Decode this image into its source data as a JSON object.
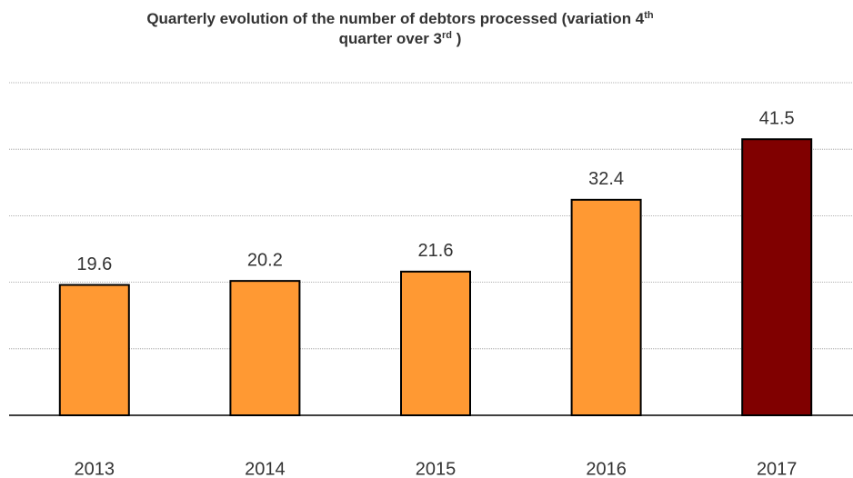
{
  "chart_data": {
    "type": "bar",
    "title": [
      "Quarterly evolution of the number of debtors processed  (variation 4",
      "th",
      " quarter over 3",
      "rd",
      " )"
    ],
    "categories": [
      "2013",
      "2014",
      "2015",
      "2016",
      "2017"
    ],
    "values": [
      19.6,
      20.2,
      21.6,
      32.4,
      41.5
    ],
    "colors": [
      "#ff9933",
      "#ff9933",
      "#ff9933",
      "#ff9933",
      "#800000"
    ],
    "ylim": [
      0,
      50
    ],
    "yticks": [
      0,
      10,
      20,
      30,
      40,
      50
    ],
    "grid": true
  }
}
